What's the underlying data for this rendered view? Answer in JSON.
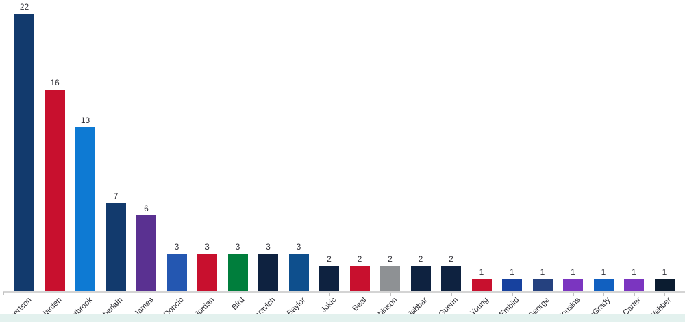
{
  "chart_data": {
    "type": "bar",
    "title": "",
    "xlabel": "",
    "ylabel": "",
    "ylim": [
      0,
      23
    ],
    "grid": false,
    "legend": "none",
    "value_labels_shown": true,
    "categories": [
      "Robertson",
      "Harden",
      "Westbrook",
      "Chamberlain",
      "James",
      "Doncic",
      "Jordan",
      "Bird",
      "Maravich",
      "Baylor",
      "Jokic",
      "Beal",
      "Robinson",
      "Abdul-Jabbar",
      "Guerin",
      "Young",
      "Embiid",
      "George",
      "Cousins",
      "McGrady",
      "Carter",
      "Webber"
    ],
    "values": [
      22,
      16,
      13,
      7,
      6,
      3,
      3,
      3,
      3,
      3,
      2,
      2,
      2,
      2,
      2,
      1,
      1,
      1,
      1,
      1,
      1,
      1
    ],
    "colors": [
      "#123a6d",
      "#c8102e",
      "#0e7ad3",
      "#123a6d",
      "#5a3191",
      "#2457b1",
      "#c8102e",
      "#007e3c",
      "#0e2240",
      "#0e4f8d",
      "#0e2240",
      "#c8102e",
      "#8e9194",
      "#0e2240",
      "#0e2240",
      "#c8102e",
      "#17419e",
      "#25417f",
      "#7b35c0",
      "#1160c0",
      "#7b35c0",
      "#0b1c30"
    ],
    "value_label_color": "#2f2f36",
    "tick_label_color": "#2d2d33",
    "axis_color": "#d4d4d4"
  },
  "footer_strip": {
    "color": "#e3f1ee"
  }
}
